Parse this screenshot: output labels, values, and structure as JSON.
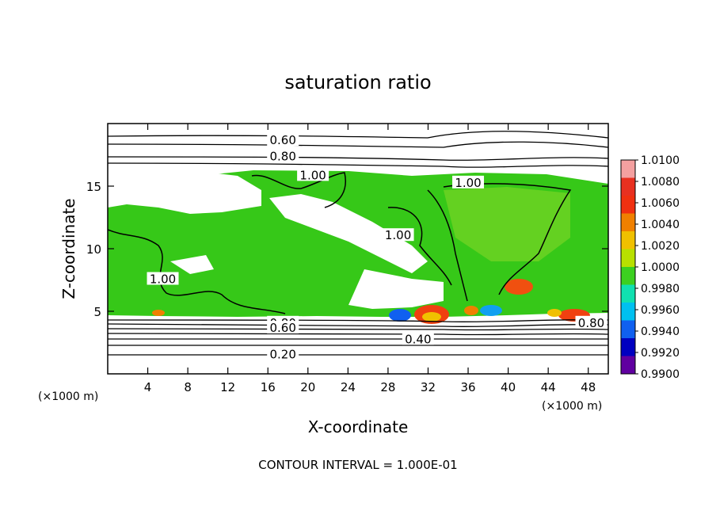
{
  "chart_data": {
    "type": "heatmap",
    "title": "saturation ratio",
    "xlabel": "X-coordinate",
    "ylabel": "Z-coordinate",
    "x_unit": "(×1000 m)",
    "x_unit_right": "(×1000 m)",
    "xlim": [
      0,
      50
    ],
    "ylim": [
      0,
      20
    ],
    "x_ticks": [
      "4",
      "8",
      "12",
      "16",
      "20",
      "24",
      "28",
      "32",
      "36",
      "40",
      "44",
      "48"
    ],
    "x_tick_values": [
      4,
      8,
      12,
      16,
      20,
      24,
      28,
      32,
      36,
      40,
      44,
      48
    ],
    "y_ticks": [
      "5",
      "10",
      "15"
    ],
    "y_tick_values": [
      5,
      10,
      15
    ],
    "contour_labels": [
      {
        "text": "0.60",
        "x": 17.5,
        "z": 18.6
      },
      {
        "text": "0.80",
        "x": 17.5,
        "z": 17.3
      },
      {
        "text": "1.00",
        "x": 20.5,
        "z": 15.8
      },
      {
        "text": "1.00",
        "x": 36.0,
        "z": 15.2
      },
      {
        "text": "1.00",
        "x": 5.5,
        "z": 7.5
      },
      {
        "text": "1.00",
        "x": 29.0,
        "z": 11.0
      },
      {
        "text": "0.80",
        "x": 17.5,
        "z": 4.0
      },
      {
        "text": "0.60",
        "x": 17.5,
        "z": 3.6
      },
      {
        "text": "0.40",
        "x": 31.0,
        "z": 2.7
      },
      {
        "text": "0.20",
        "x": 17.5,
        "z": 1.5
      },
      {
        "text": "0.80",
        "x": 48.3,
        "z": 4.0
      }
    ],
    "colorbar": {
      "labels": [
        "1.0100",
        "1.0080",
        "1.0060",
        "1.0040",
        "1.0020",
        "1.0000",
        "0.9980",
        "0.9960",
        "0.9940",
        "0.9920",
        "0.9900"
      ],
      "values": [
        1.01,
        1.008,
        1.006,
        1.004,
        1.002,
        1.0,
        0.998,
        0.996,
        0.994,
        0.992,
        0.99
      ],
      "colors": [
        "#f4a0a0",
        "#e83020",
        "#f03010",
        "#f08000",
        "#f0c000",
        "#b8e000",
        "#3cd020",
        "#10e0b0",
        "#00c0f0",
        "#1060f0",
        "#0000c0",
        "#6000a0"
      ]
    },
    "footer": "CONTOUR INTERVAL = 1.000E-01"
  }
}
